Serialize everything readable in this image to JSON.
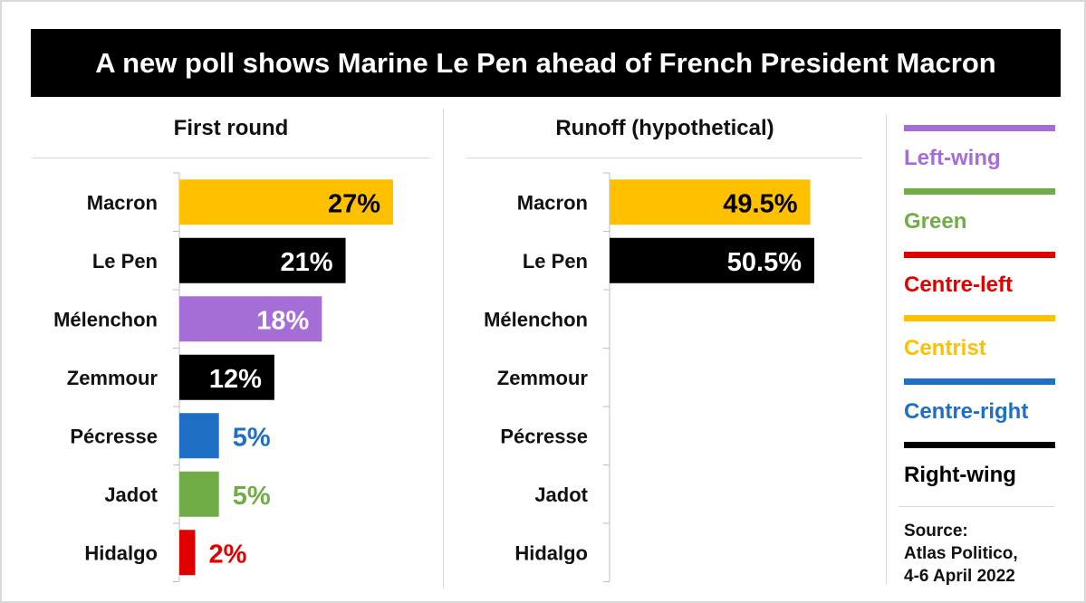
{
  "title": "A new poll shows Marine Le Pen ahead of French President Macron",
  "chart_data": [
    {
      "type": "bar",
      "orientation": "horizontal",
      "title": "First round",
      "categories": [
        "Macron",
        "Le Pen",
        "Mélenchon",
        "Zemmour",
        "Pécresse",
        "Jadot",
        "Hidalgo"
      ],
      "values": [
        27,
        21,
        18,
        12,
        5,
        5,
        2
      ],
      "value_labels": [
        "27%",
        "21%",
        "18%",
        "12%",
        "5%",
        "5%",
        "2%"
      ],
      "colors": [
        "#FFC000",
        "#000000",
        "#A56DD6",
        "#000000",
        "#1F6FC5",
        "#70AD47",
        "#E00000"
      ],
      "xlim": [
        0,
        27
      ]
    },
    {
      "type": "bar",
      "orientation": "horizontal",
      "title": "Runoff (hypothetical)",
      "categories": [
        "Macron",
        "Le Pen",
        "Mélenchon",
        "Zemmour",
        "Pécresse",
        "Jadot",
        "Hidalgo"
      ],
      "values": [
        49.5,
        50.5,
        null,
        null,
        null,
        null,
        null
      ],
      "value_labels": [
        "49.5%",
        "50.5%",
        "",
        "",
        "",
        "",
        ""
      ],
      "colors": [
        "#FFC000",
        "#000000",
        "#A56DD6",
        "#000000",
        "#1F6FC5",
        "#70AD47",
        "#E00000"
      ],
      "xlim": [
        0,
        50.5
      ]
    }
  ],
  "legend": [
    {
      "label": "Left-wing",
      "color": "#A56DD6"
    },
    {
      "label": "Green",
      "color": "#70AD47"
    },
    {
      "label": "Centre-left",
      "color": "#E00000"
    },
    {
      "label": "Centrist",
      "color": "#FFC000"
    },
    {
      "label": "Centre-right",
      "color": "#1F6FC5"
    },
    {
      "label": "Right-wing",
      "color": "#000000"
    }
  ],
  "source": {
    "line1": "Source:",
    "line2": "Atlas Politico,",
    "line3": "4-6 April 2022"
  }
}
